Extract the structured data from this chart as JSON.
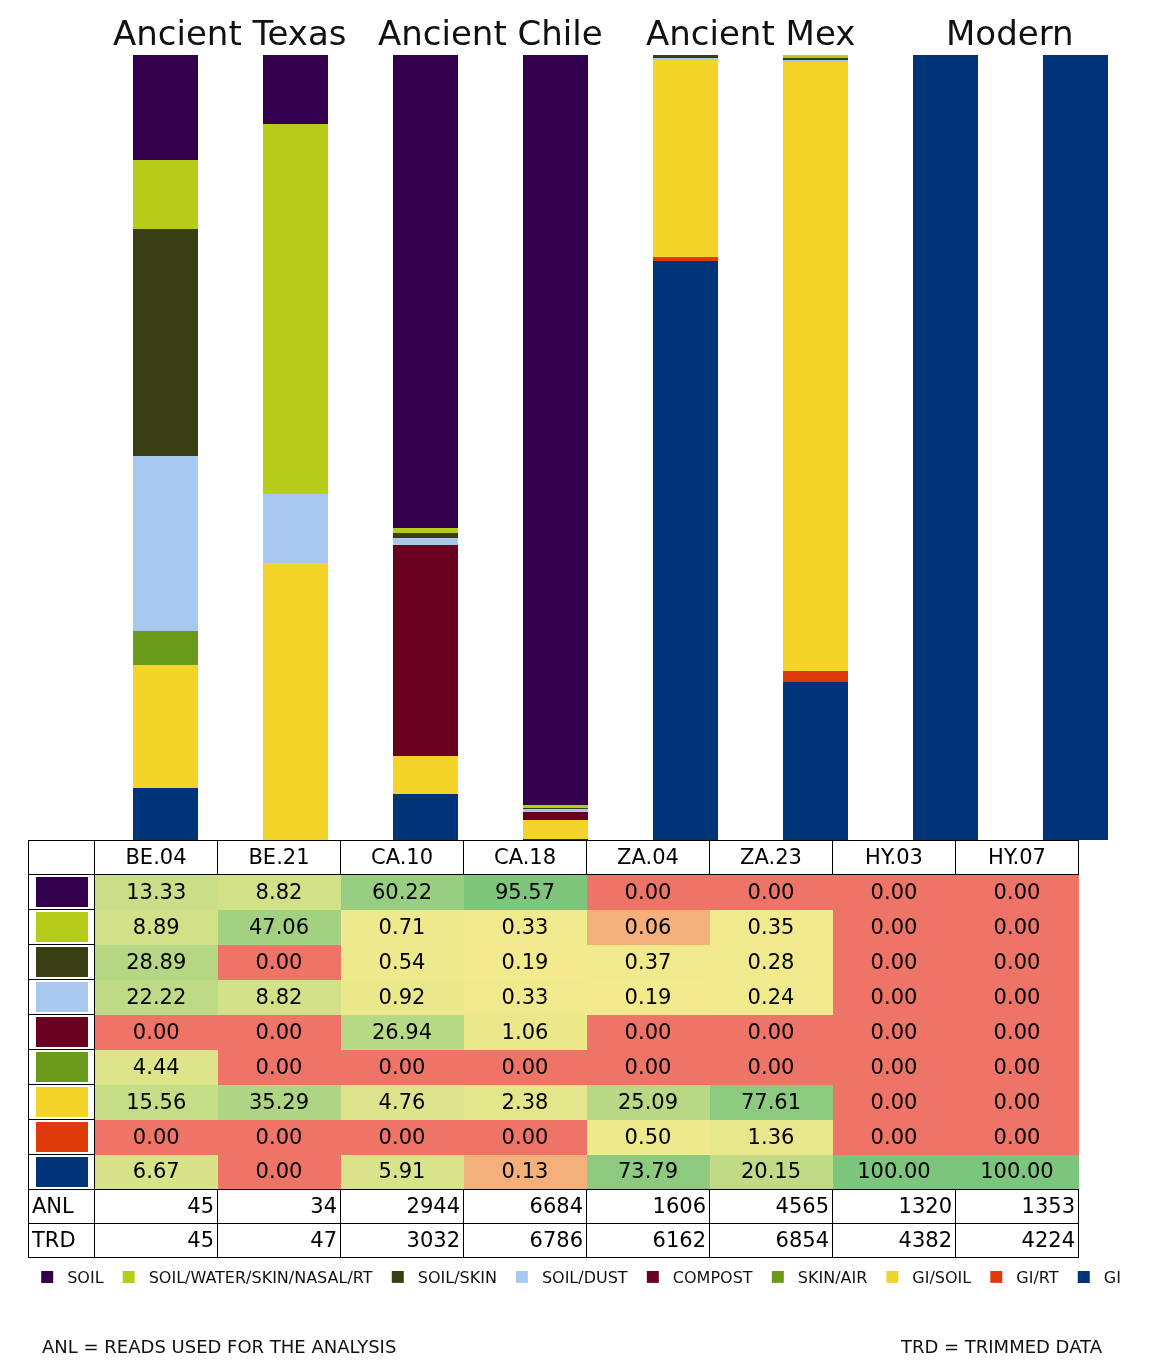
{
  "chart_data": {
    "type": "bar",
    "stacked": true,
    "categories": [
      "BE.04",
      "BE.21",
      "CA.10",
      "CA.18",
      "ZA.04",
      "ZA.23",
      "HY.03",
      "HY.07"
    ],
    "ylim": [
      0,
      100
    ],
    "tick_labels": false,
    "grid": false,
    "legend": "bottom",
    "series": [
      {
        "name": "GI",
        "color": "#003478",
        "values": [
          6.67,
          0,
          5.91,
          0.13,
          73.79,
          20.15,
          100,
          100
        ],
        "value_labels": [
          "6.67",
          "0.00",
          "5.91",
          "0.13",
          "73.79",
          "20.15",
          "100.00",
          "100.00"
        ]
      },
      {
        "name": "GI/RT",
        "color": "#df3a0a",
        "values": [
          0,
          0,
          0,
          0,
          0.5,
          1.36,
          0,
          0
        ],
        "value_labels": [
          "0.00",
          "0.00",
          "0.00",
          "0.00",
          "0.50",
          "1.36",
          "0.00",
          "0.00"
        ]
      },
      {
        "name": "GI/SOIL",
        "color": "#f5d42a",
        "values": [
          15.56,
          35.29,
          4.76,
          2.38,
          25.09,
          77.61,
          0,
          0
        ],
        "value_labels": [
          "15.56",
          "35.29",
          "4.76",
          "2.38",
          "25.09",
          "77.61",
          "0.00",
          "0.00"
        ]
      },
      {
        "name": "SKIN/AIR",
        "color": "#6a9a1a",
        "values": [
          4.44,
          0,
          0,
          0,
          0,
          0,
          0,
          0
        ],
        "value_labels": [
          "4.44",
          "0.00",
          "0.00",
          "0.00",
          "0.00",
          "0.00",
          "0.00",
          "0.00"
        ]
      },
      {
        "name": "COMPOST",
        "color": "#690020",
        "values": [
          0,
          0,
          26.94,
          1.06,
          0,
          0,
          0,
          0
        ],
        "value_labels": [
          "0.00",
          "0.00",
          "26.94",
          "1.06",
          "0.00",
          "0.00",
          "0.00",
          "0.00"
        ]
      },
      {
        "name": "SOIL/DUST",
        "color": "#a9c8f0",
        "values": [
          22.22,
          8.82,
          0.92,
          0.33,
          0.19,
          0.24,
          0,
          0
        ],
        "value_labels": [
          "22.22",
          "8.82",
          "0.92",
          "0.33",
          "0.19",
          "0.24",
          "0.00",
          "0.00"
        ]
      },
      {
        "name": "SOIL/SKIN",
        "color": "#383d14",
        "values": [
          28.89,
          0,
          0.54,
          0.19,
          0.37,
          0.28,
          0,
          0
        ],
        "value_labels": [
          "28.89",
          "0.00",
          "0.54",
          "0.19",
          "0.37",
          "0.28",
          "0.00",
          "0.00"
        ]
      },
      {
        "name": "SOIL/WATER/SKIN/NASAL/RT",
        "color": "#b5cc18",
        "values": [
          8.89,
          47.06,
          0.71,
          0.33,
          0.06,
          0.35,
          0,
          0
        ],
        "value_labels": [
          "8.89",
          "47.06",
          "0.71",
          "0.33",
          "0.06",
          "0.35",
          "0.00",
          "0.00"
        ]
      },
      {
        "name": "SOIL",
        "color": "#33004d",
        "values": [
          13.33,
          8.82,
          60.22,
          95.57,
          0,
          0,
          0,
          0
        ],
        "value_labels": [
          "13.33",
          "8.82",
          "60.22",
          "95.57",
          "0.00",
          "0.00",
          "0.00",
          "0.00"
        ]
      }
    ],
    "annotations": [
      "Ancient Texas",
      "Ancient Chile",
      "Ancient Mex",
      "Modern",
      "ANL",
      "45",
      "34",
      "2944",
      "6684",
      "1606",
      "4565",
      "1320",
      "1353",
      "TRD",
      "45",
      "47",
      "3032",
      "6786",
      "6162",
      "6854",
      "4382",
      "4224",
      "ANL = READS USED FOR THE ANALYSIS",
      "TRD = TRIMMED DATA"
    ]
  }
}
